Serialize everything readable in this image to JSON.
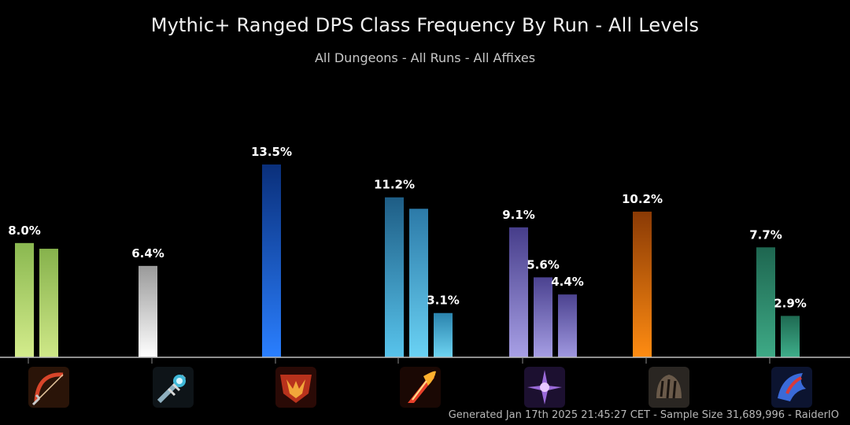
{
  "chart_data": {
    "type": "bar",
    "title": "Mythic+ Ranged DPS Class Frequency By Run - All Levels",
    "subtitle": "All Dungeons - All Runs - All Affixes",
    "ylim": [
      0,
      14
    ],
    "groups": [
      {
        "icon": "bow-icon",
        "bars": [
          {
            "value": 8.0,
            "label": "8.0%",
            "color_top": "#8ab850",
            "color_bottom": "#d4ec8c"
          },
          {
            "value": 7.6,
            "label": "",
            "color_top": "#86b24c",
            "color_bottom": "#cfe888"
          }
        ]
      },
      {
        "icon": "staff-icon",
        "bars": [
          {
            "value": 6.4,
            "label": "6.4%",
            "color_top": "#9a9a9a",
            "color_bottom": "#ffffff"
          }
        ]
      },
      {
        "icon": "shield-icon",
        "bars": [
          {
            "value": 13.5,
            "label": "13.5%",
            "color_top": "#0a2f7a",
            "color_bottom": "#2a7fff"
          }
        ]
      },
      {
        "icon": "fire-icon",
        "bars": [
          {
            "value": 11.2,
            "label": "11.2%",
            "color_top": "#1e5d85",
            "color_bottom": "#58c4ec"
          },
          {
            "value": 10.4,
            "label": "",
            "color_top": "#2c7aa8",
            "color_bottom": "#6ad2f4"
          },
          {
            "value": 3.1,
            "label": "3.1%",
            "color_top": "#2a83ad",
            "color_bottom": "#6ed4f2"
          }
        ]
      },
      {
        "icon": "spirit-icon",
        "bars": [
          {
            "value": 9.1,
            "label": "9.1%",
            "color_top": "#463d8a",
            "color_bottom": "#a8a0e6"
          },
          {
            "value": 5.6,
            "label": "5.6%",
            "color_top": "#4b4290",
            "color_bottom": "#a69ee4"
          },
          {
            "value": 4.4,
            "label": "4.4%",
            "color_top": "#4c4390",
            "color_bottom": "#a098e0"
          }
        ]
      },
      {
        "icon": "claw-icon",
        "bars": [
          {
            "value": 10.2,
            "label": "10.2%",
            "color_top": "#8a3a05",
            "color_bottom": "#ff8c12"
          }
        ]
      },
      {
        "icon": "dragon-icon",
        "bars": [
          {
            "value": 7.7,
            "label": "7.7%",
            "color_top": "#1e6650",
            "color_bottom": "#3eaa86"
          },
          {
            "value": 2.9,
            "label": "2.9%",
            "color_top": "#1f6a52",
            "color_bottom": "#3eae8a"
          }
        ]
      }
    ]
  },
  "footer": "Generated Jan 17th 2025 21:45:27 CET - Sample Size 31,689,996 - RaiderIO"
}
